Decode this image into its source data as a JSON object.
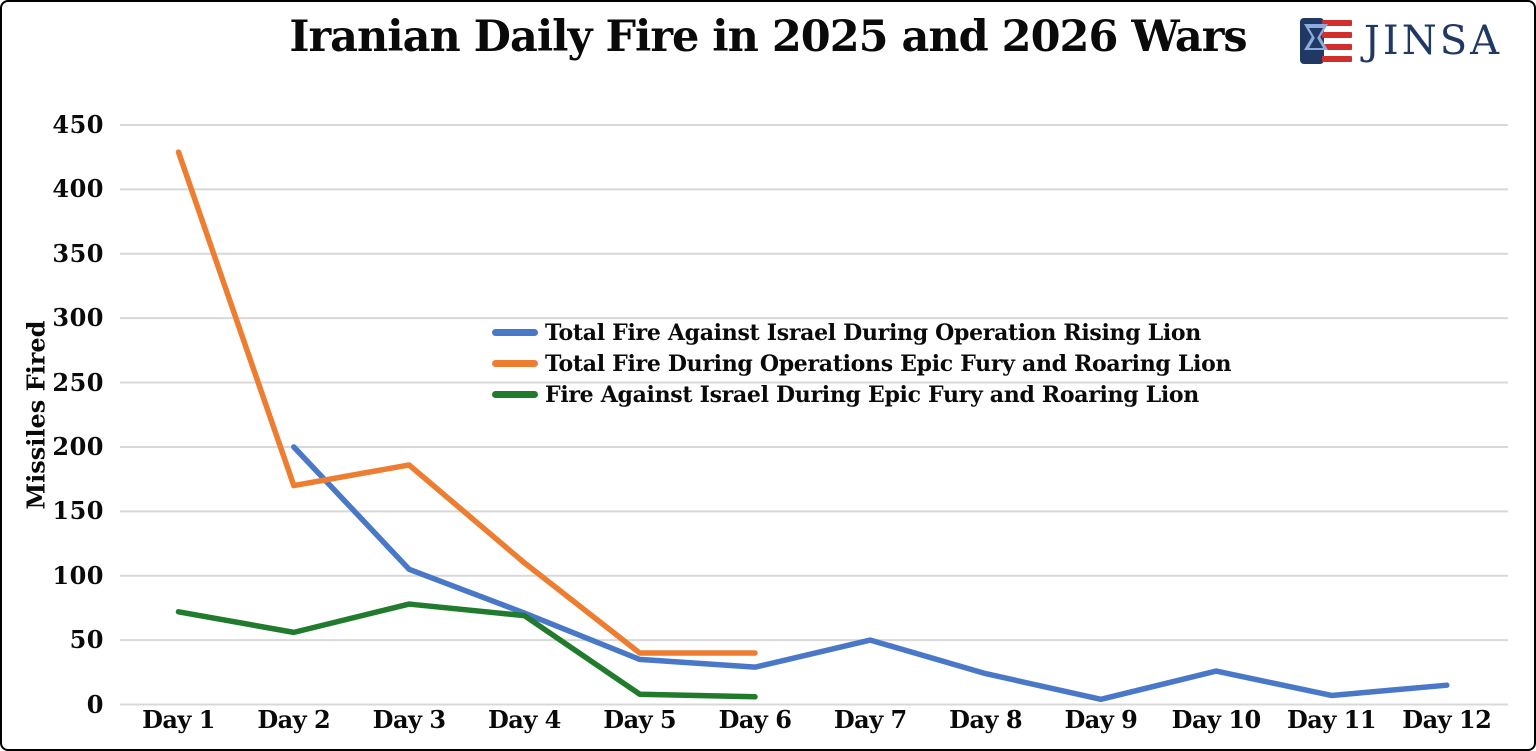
{
  "logo": {
    "text": "JINSA",
    "colors": {
      "navy": "#1F3864",
      "light_blue": "#8FAADC",
      "red": "#D12E2E"
    }
  },
  "chart_data": {
    "type": "line",
    "title": "Iranian Daily Fire in 2025 and 2026 Wars",
    "xlabel": "",
    "ylabel": "Missiles Fired",
    "ylim": [
      0,
      450
    ],
    "yticks": [
      0,
      50,
      100,
      150,
      200,
      250,
      300,
      350,
      400,
      450
    ],
    "grid": "horizontal",
    "grid_color": "#d8d8d8",
    "text_color": "#0a0a0a",
    "legend_position": "overlay-center-left",
    "categories": [
      "Day 1",
      "Day 2",
      "Day 3",
      "Day 4",
      "Day 5",
      "Day 6",
      "Day 7",
      "Day 8",
      "Day 9",
      "Day 10",
      "Day 11",
      "Day 12"
    ],
    "series": [
      {
        "key": "operation-rising-lion",
        "name": "Total Fire Against Israel During Operation Rising Lion",
        "color": "#4A78C8",
        "values": [
          null,
          200,
          105,
          71,
          35,
          29,
          50,
          24,
          4,
          26,
          7,
          15
        ]
      },
      {
        "key": "epic-fury-roaring-lion-total",
        "name": "Total Fire During Operations Epic Fury and Roaring Lion",
        "color": "#ED7D31",
        "values": [
          429,
          170,
          186,
          110,
          40,
          40,
          null,
          null,
          null,
          null,
          null,
          null
        ]
      },
      {
        "key": "epic-fury-roaring-lion-israel",
        "name": "Fire Against Israel During Epic Fury and Roaring Lion",
        "color": "#217B2D",
        "values": [
          72,
          56,
          78,
          69,
          8,
          6,
          null,
          null,
          null,
          null,
          null,
          null
        ]
      }
    ]
  }
}
